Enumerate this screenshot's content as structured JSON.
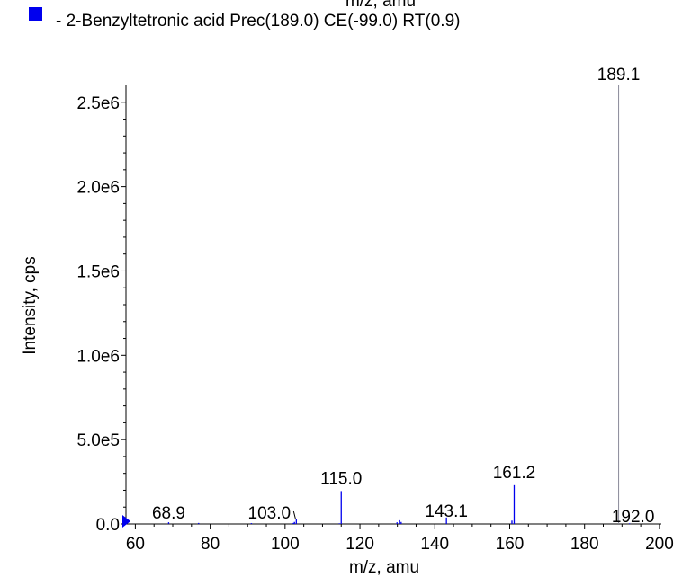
{
  "chart_data": {
    "type": "bar",
    "top_clipped_text": "m/z, amu",
    "legend": {
      "marker_color": "#0000ee",
      "text": "- 2-Benzyltetronic acid Prec(189.0) CE(-99.0) RT(0.9)",
      "placement": "top-left"
    },
    "xlabel": "m/z, amu",
    "ylabel": "Intensity, cps",
    "xlim": [
      57.5,
      200.5
    ],
    "ylim": [
      0,
      2600000
    ],
    "x_ticks": [
      60,
      80,
      100,
      120,
      140,
      160,
      180,
      200
    ],
    "x_tick_labels": [
      "60",
      "80",
      "100",
      "120",
      "140",
      "160",
      "180",
      "200"
    ],
    "y_ticks": [
      0,
      500000,
      1000000,
      1500000,
      2000000,
      2500000
    ],
    "y_tick_labels": [
      "0.0",
      "5.0e5",
      "1.0e6",
      "1.5e6",
      "2.0e6",
      "2.5e6"
    ],
    "series": [
      {
        "color": "#0000ee",
        "x": [
          68.9,
          76.9,
          91.0,
          102.2,
          102.5,
          103.0,
          114.5,
          115.0,
          129.9,
          130.6,
          131.0,
          143.1,
          160.6,
          161.2,
          189.1,
          192.0
        ],
        "values": [
          10000,
          6000,
          5000,
          6000,
          12000,
          28000,
          4000,
          195000,
          10000,
          22000,
          12000,
          38000,
          20000,
          230000,
          2600000,
          4000
        ]
      }
    ],
    "peak_labels": [
      {
        "x": 68.9,
        "text": "68.9"
      },
      {
        "x": 103.0,
        "text": "103.0"
      },
      {
        "x": 115.0,
        "text": "115.0"
      },
      {
        "x": 143.1,
        "text": "143.1"
      },
      {
        "x": 161.2,
        "text": "161.2"
      },
      {
        "x": 189.1,
        "text": "189.1"
      },
      {
        "x": 192.0,
        "text": "192.0"
      }
    ]
  }
}
